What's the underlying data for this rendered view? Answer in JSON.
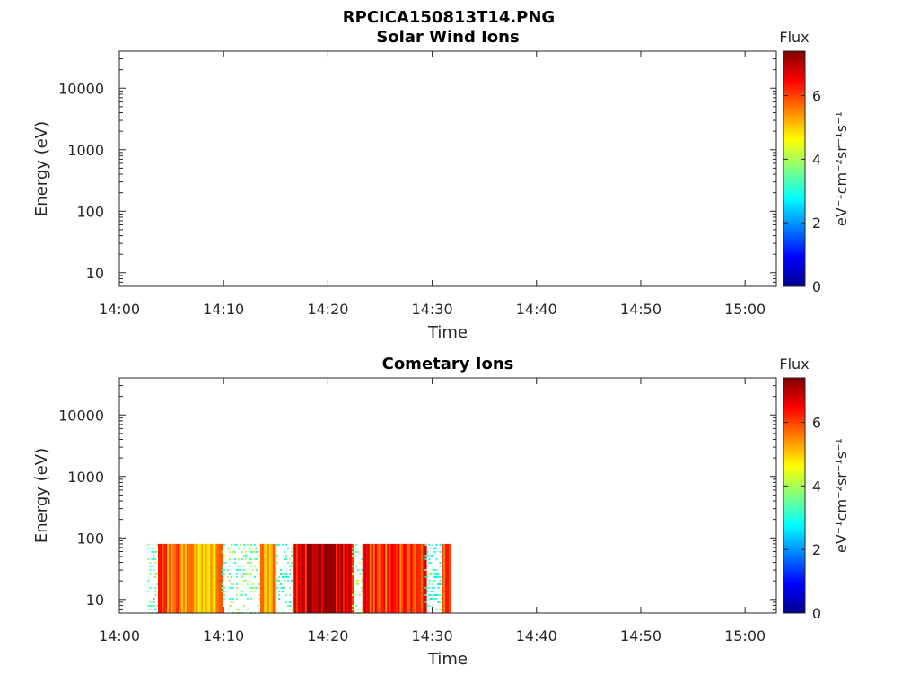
{
  "figure_title": "RPCICA150813T14.PNG",
  "colors": {
    "jet_stops": [
      "#00008f",
      "#0000ff",
      "#0080ff",
      "#00ffff",
      "#80ff80",
      "#ffff00",
      "#ff8000",
      "#ff0000",
      "#800000"
    ],
    "axis": "#262626"
  },
  "chart_data": [
    {
      "type": "heatmap",
      "title": "Solar Wind Ions",
      "xlabel": "Time",
      "ylabel": "Energy (eV)",
      "x_ticks": [
        "14:00",
        "14:10",
        "14:20",
        "14:30",
        "14:40",
        "14:50",
        "15:00"
      ],
      "y_ticks": [
        "10",
        "100",
        "1000",
        "10000"
      ],
      "y_scale": "log",
      "ylim": [
        6,
        40000
      ],
      "xlim_minutes": [
        0,
        63
      ],
      "colorbar": {
        "title": "Flux",
        "label": "eV⁻¹cm⁻²sr⁻¹s⁻¹",
        "ticks": [
          "0",
          "2",
          "4",
          "6"
        ],
        "range": [
          0,
          7.4
        ]
      },
      "energy_range_ev": [
        6,
        80
      ],
      "bands": []
    },
    {
      "type": "heatmap",
      "title": "Cometary Ions",
      "xlabel": "Time",
      "ylabel": "Energy (eV)",
      "x_ticks": [
        "14:00",
        "14:10",
        "14:20",
        "14:30",
        "14:40",
        "14:50",
        "15:00"
      ],
      "y_ticks": [
        "10",
        "100",
        "1000",
        "10000"
      ],
      "y_scale": "log",
      "ylim": [
        6,
        40000
      ],
      "xlim_minutes": [
        0,
        63
      ],
      "colorbar": {
        "title": "Flux",
        "label": "eV⁻¹cm⁻²sr⁻¹s⁻¹",
        "ticks": [
          "0",
          "2",
          "4",
          "6"
        ],
        "range": [
          0,
          7.4
        ]
      },
      "energy_range_ev": [
        6,
        80
      ],
      "bands": [
        {
          "start": 2.7,
          "end": 3.7,
          "flux": 3.3,
          "sparse": true
        },
        {
          "start": 3.7,
          "end": 7.0,
          "flux": 5.6,
          "sparse": false
        },
        {
          "start": 7.0,
          "end": 9.8,
          "flux": 5.2,
          "sparse": false
        },
        {
          "start": 9.8,
          "end": 13.5,
          "flux": 3.6,
          "sparse": true
        },
        {
          "start": 13.5,
          "end": 14.9,
          "flux": 5.6,
          "sparse": false
        },
        {
          "start": 14.9,
          "end": 16.6,
          "flux": 3.3,
          "sparse": true
        },
        {
          "start": 16.6,
          "end": 22.3,
          "flux": 6.8,
          "sparse": false
        },
        {
          "start": 22.3,
          "end": 23.3,
          "flux": 3.8,
          "sparse": true
        },
        {
          "start": 23.3,
          "end": 25.5,
          "flux": 6.2,
          "sparse": false
        },
        {
          "start": 25.5,
          "end": 29.3,
          "flux": 6.0,
          "sparse": false
        },
        {
          "start": 29.3,
          "end": 30.9,
          "flux": 3.1,
          "sparse": true
        },
        {
          "start": 30.9,
          "end": 31.6,
          "flux": 6.3,
          "sparse": false
        }
      ]
    }
  ]
}
